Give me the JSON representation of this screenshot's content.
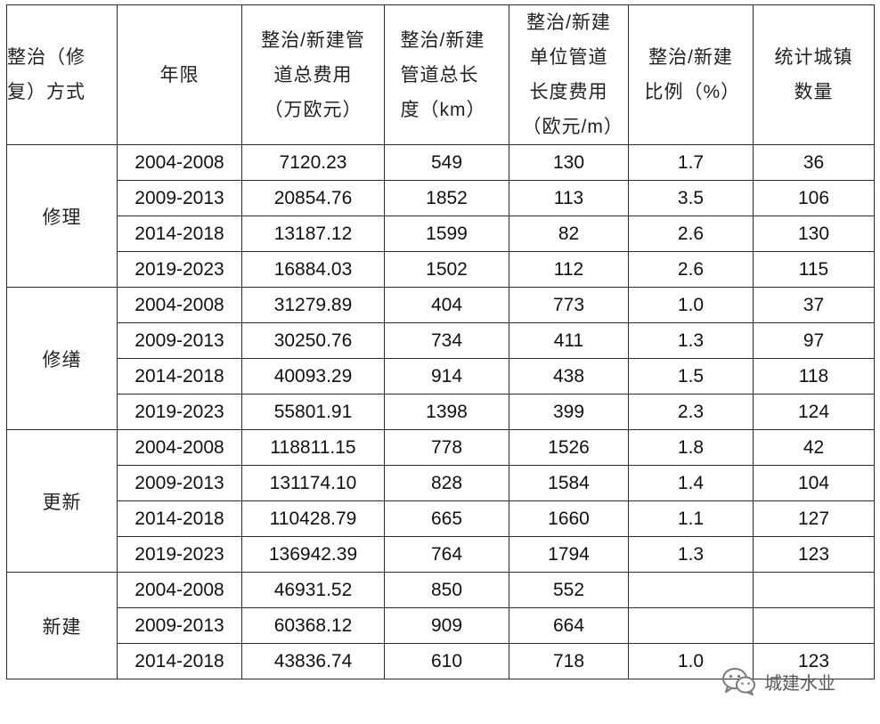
{
  "headers": {
    "method": "整治（修复）方式",
    "period": "年限",
    "total_cost": "整治/新建管道总费用（万欧元）",
    "total_length": "整治/新建管道总长度（km）",
    "unit_cost": "整治/新建单位管道长度费用（欧元/m）",
    "ratio": "整治/新建比例（%）",
    "towns": "统计城镇数量"
  },
  "groups": [
    {
      "method": "修理",
      "rows": [
        {
          "period": "2004-2008",
          "total_cost": "7120.23",
          "total_length": "549",
          "unit_cost": "130",
          "ratio": "1.7",
          "towns": "36"
        },
        {
          "period": "2009-2013",
          "total_cost": "20854.76",
          "total_length": "1852",
          "unit_cost": "113",
          "ratio": "3.5",
          "towns": "106"
        },
        {
          "period": "2014-2018",
          "total_cost": "13187.12",
          "total_length": "1599",
          "unit_cost": "82",
          "ratio": "2.6",
          "towns": "130"
        },
        {
          "period": "2019-2023",
          "total_cost": "16884.03",
          "total_length": "1502",
          "unit_cost": "112",
          "ratio": "2.6",
          "towns": "115"
        }
      ]
    },
    {
      "method": "修缮",
      "rows": [
        {
          "period": "2004-2008",
          "total_cost": "31279.89",
          "total_length": "404",
          "unit_cost": "773",
          "ratio": "1.0",
          "towns": "37"
        },
        {
          "period": "2009-2013",
          "total_cost": "30250.76",
          "total_length": "734",
          "unit_cost": "411",
          "ratio": "1.3",
          "towns": "97"
        },
        {
          "period": "2014-2018",
          "total_cost": "40093.29",
          "total_length": "914",
          "unit_cost": "438",
          "ratio": "1.5",
          "towns": "118"
        },
        {
          "period": "2019-2023",
          "total_cost": "55801.91",
          "total_length": "1398",
          "unit_cost": "399",
          "ratio": "2.3",
          "towns": "124"
        }
      ]
    },
    {
      "method": "更新",
      "rows": [
        {
          "period": "2004-2008",
          "total_cost": "118811.15",
          "total_length": "778",
          "unit_cost": "1526",
          "ratio": "1.8",
          "towns": "42"
        },
        {
          "period": "2009-2013",
          "total_cost": "131174.10",
          "total_length": "828",
          "unit_cost": "1584",
          "ratio": "1.4",
          "towns": "104"
        },
        {
          "period": "2014-2018",
          "total_cost": "110428.79",
          "total_length": "665",
          "unit_cost": "1660",
          "ratio": "1.1",
          "towns": "127"
        },
        {
          "period": "2019-2023",
          "total_cost": "136942.39",
          "total_length": "764",
          "unit_cost": "1794",
          "ratio": "1.3",
          "towns": "123"
        }
      ]
    },
    {
      "method": "新建",
      "rows": [
        {
          "period": "2004-2008",
          "total_cost": "46931.52",
          "total_length": "850",
          "unit_cost": "552",
          "ratio": "",
          "towns": ""
        },
        {
          "period": "2009-2013",
          "total_cost": "60368.12",
          "total_length": "909",
          "unit_cost": "664",
          "ratio": "",
          "towns": ""
        },
        {
          "period": "2014-2018",
          "total_cost": "43836.74",
          "total_length": "610",
          "unit_cost": "718",
          "ratio": "1.0",
          "towns": "123"
        }
      ]
    }
  ],
  "watermark": {
    "text": "城建水业",
    "icon": "wechat-icon"
  },
  "colors": {
    "text": "#111111",
    "border": "#2b2b2b",
    "watermark": "#5a5a5a"
  }
}
